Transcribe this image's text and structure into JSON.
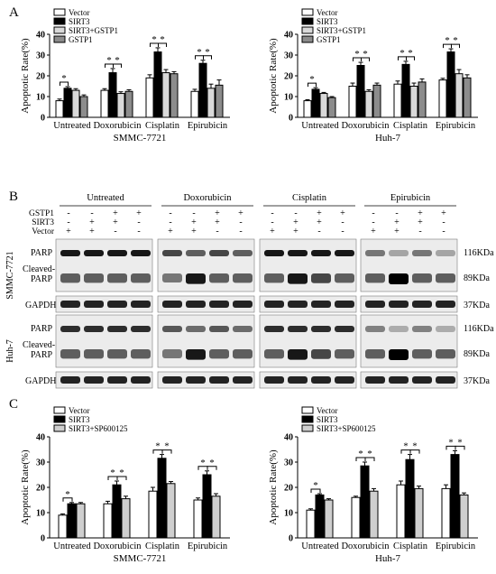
{
  "panel_labels": {
    "A": "A",
    "B": "B",
    "C": "C"
  },
  "colors": {
    "vector": "#ffffff",
    "sirt3": "#000000",
    "combo": "#d9d9d9",
    "gstp1": "#8c8c8c",
    "sp": "#cfcfcf"
  },
  "blot": {
    "treatments": [
      "Untreated",
      "Doxorubicin",
      "Cisplatin",
      "Epirubicin"
    ],
    "row_labels": [
      "GSTP1",
      "SIRT3",
      "Vector"
    ],
    "signs": [
      [
        "-",
        "-",
        "+",
        "+"
      ],
      [
        "-",
        "+",
        "+",
        "-"
      ],
      [
        "+",
        "+",
        "-",
        "-"
      ]
    ],
    "cell_lines": [
      "SMMC-7721",
      "Huh-7"
    ],
    "band_labels": {
      "parp": "PARP",
      "cleaved_1": "Cleaved-",
      "cleaved_2": "PARP",
      "gapdh": "GAPDH"
    },
    "sizes": [
      "116KDa",
      "89KDa",
      "37KDa"
    ]
  },
  "chart_data": [
    {
      "type": "bar",
      "panel": "A",
      "title": "SMMC-7721",
      "xlabel": "",
      "ylabel": "Apoptotic Rate(%)",
      "ylim": [
        0,
        40
      ],
      "yticks": [
        0,
        10,
        20,
        30,
        40
      ],
      "categories": [
        "Untreated",
        "Doxorubicin",
        "Cisplatin",
        "Epirubicin"
      ],
      "series": [
        {
          "name": "Vector",
          "values": [
            8,
            13,
            19,
            12.5
          ],
          "errors": [
            0.8,
            0.8,
            1.5,
            1.0
          ]
        },
        {
          "name": "SIRT3",
          "values": [
            14,
            21.5,
            31.5,
            26
          ],
          "errors": [
            0.8,
            2.0,
            2.0,
            1.5
          ]
        },
        {
          "name": "SIRT3+GSTP1",
          "values": [
            13,
            11.5,
            21.5,
            14
          ],
          "errors": [
            0.8,
            0.8,
            1.5,
            2.0
          ]
        },
        {
          "name": "GSTP1",
          "values": [
            10,
            12.5,
            21,
            15.5
          ],
          "errors": [
            0.8,
            0.8,
            1.0,
            2.5
          ]
        }
      ],
      "significance": [
        {
          "category": 0,
          "pairs": [
            [
              0,
              1
            ]
          ]
        },
        {
          "category": 1,
          "pairs": [
            [
              0,
              1
            ],
            [
              1,
              2
            ]
          ]
        },
        {
          "category": 2,
          "pairs": [
            [
              0,
              1
            ],
            [
              1,
              2
            ]
          ]
        },
        {
          "category": 3,
          "pairs": [
            [
              0,
              1
            ],
            [
              1,
              2
            ]
          ]
        }
      ],
      "star": "*"
    },
    {
      "type": "bar",
      "panel": "A",
      "title": "Huh-7",
      "xlabel": "",
      "ylabel": "Apoptotic Rate(%)",
      "ylim": [
        0,
        40
      ],
      "yticks": [
        0,
        10,
        20,
        30,
        40
      ],
      "categories": [
        "Untreated",
        "Doxorubicin",
        "Cisplatin",
        "Epirubicin"
      ],
      "series": [
        {
          "name": "Vector",
          "values": [
            8,
            15,
            16,
            18
          ],
          "errors": [
            0.5,
            1.5,
            1.5,
            0.8
          ]
        },
        {
          "name": "SIRT3",
          "values": [
            13.5,
            25,
            25.5,
            31.5
          ],
          "errors": [
            0.8,
            1.5,
            1.5,
            1.5
          ]
        },
        {
          "name": "SIRT3+GSTP1",
          "values": [
            11.5,
            12.5,
            15,
            21
          ],
          "errors": [
            0.5,
            0.8,
            1.5,
            2.0
          ]
        },
        {
          "name": "GSTP1",
          "values": [
            9.5,
            15.5,
            17,
            19
          ],
          "errors": [
            0.5,
            1.0,
            1.5,
            1.5
          ]
        }
      ],
      "significance": [
        {
          "category": 0,
          "pairs": [
            [
              0,
              1
            ]
          ]
        },
        {
          "category": 1,
          "pairs": [
            [
              0,
              1
            ],
            [
              1,
              2
            ]
          ]
        },
        {
          "category": 2,
          "pairs": [
            [
              0,
              1
            ],
            [
              1,
              2
            ]
          ]
        },
        {
          "category": 3,
          "pairs": [
            [
              0,
              1
            ],
            [
              1,
              2
            ]
          ]
        }
      ],
      "star": "*"
    },
    {
      "type": "bar",
      "panel": "C",
      "title": "SMMC-7721",
      "xlabel": "",
      "ylabel": "Apoptotic Rate(%)",
      "ylim": [
        0,
        40
      ],
      "yticks": [
        0,
        10,
        20,
        30,
        40
      ],
      "categories": [
        "Untreated",
        "Doxorubicin",
        "Cisplatin",
        "Epirubicin"
      ],
      "series": [
        {
          "name": "Vector",
          "values": [
            9,
            13.5,
            18.5,
            15
          ],
          "errors": [
            0.5,
            1.0,
            1.5,
            0.8
          ]
        },
        {
          "name": "SIRT3",
          "values": [
            13.5,
            21,
            31.5,
            25
          ],
          "errors": [
            0.5,
            1.5,
            1.5,
            1.5
          ]
        },
        {
          "name": "SIRT3+SP600125",
          "values": [
            13.5,
            15.5,
            21.5,
            16.5
          ],
          "errors": [
            0.5,
            1.0,
            0.8,
            1.0
          ]
        }
      ],
      "significance": [
        {
          "category": 0,
          "pairs": [
            [
              0,
              1
            ]
          ]
        },
        {
          "category": 1,
          "pairs": [
            [
              0,
              1
            ],
            [
              1,
              2
            ]
          ]
        },
        {
          "category": 2,
          "pairs": [
            [
              0,
              1
            ],
            [
              1,
              2
            ]
          ]
        },
        {
          "category": 3,
          "pairs": [
            [
              0,
              1
            ],
            [
              1,
              2
            ]
          ]
        }
      ],
      "star": "*"
    },
    {
      "type": "bar",
      "panel": "C",
      "title": "Huh-7",
      "xlabel": "",
      "ylabel": "Apoptotic Rate(%)",
      "ylim": [
        0,
        40
      ],
      "yticks": [
        0,
        10,
        20,
        30,
        40
      ],
      "categories": [
        "Untreated",
        "Doxorubicin",
        "Cisplatin",
        "Epirubicin"
      ],
      "series": [
        {
          "name": "Vector",
          "values": [
            11,
            16,
            21,
            19.5
          ],
          "errors": [
            0.5,
            0.5,
            1.5,
            1.5
          ]
        },
        {
          "name": "SIRT3",
          "values": [
            17,
            28.5,
            31,
            33
          ],
          "errors": [
            0.5,
            1.5,
            2.0,
            1.5
          ]
        },
        {
          "name": "SIRT3+SP600125",
          "values": [
            15,
            18.5,
            19.5,
            17
          ],
          "errors": [
            0.5,
            1.0,
            1.0,
            0.8
          ]
        }
      ],
      "significance": [
        {
          "category": 0,
          "pairs": [
            [
              0,
              1
            ]
          ]
        },
        {
          "category": 1,
          "pairs": [
            [
              0,
              1
            ],
            [
              1,
              2
            ]
          ]
        },
        {
          "category": 2,
          "pairs": [
            [
              0,
              1
            ],
            [
              1,
              2
            ]
          ]
        },
        {
          "category": 3,
          "pairs": [
            [
              0,
              1
            ],
            [
              1,
              2
            ]
          ]
        }
      ],
      "star": "*"
    }
  ]
}
